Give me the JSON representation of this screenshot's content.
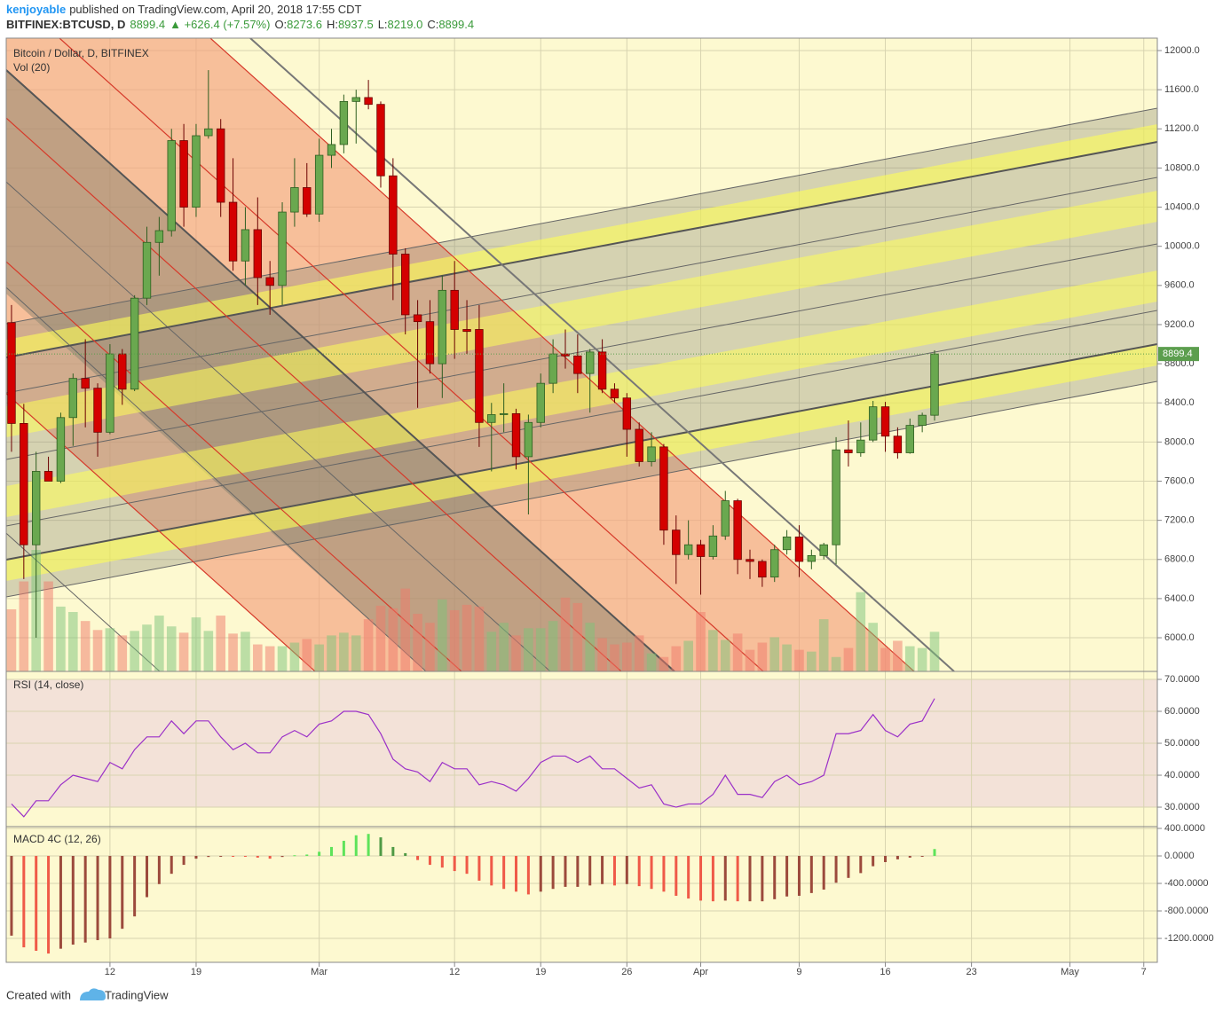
{
  "header": {
    "author": "kenjoyable",
    "published": "published on TradingView.com, April 20, 2018 17:55 CDT",
    "symbol": "BITFINEX:BTCUSD, D",
    "price": "8899.4",
    "change": "▲ +626.4 (+7.57%)",
    "ohlc": [
      {
        "k": "O:",
        "v": "8273.6"
      },
      {
        "k": "H:",
        "v": "8937.5"
      },
      {
        "k": "L:",
        "v": "8219.0"
      },
      {
        "k": "C:",
        "v": "8899.4"
      }
    ]
  },
  "footer": {
    "created": "Created with",
    "brand": "TradingView"
  },
  "chart_data": {
    "type": "candlestick",
    "title": "Bitcoin / Dollar, D, BITFINEX",
    "open": [
      9220,
      8190,
      6950,
      7700,
      7600,
      8250,
      8650,
      8550,
      8100,
      8900,
      8540,
      9470,
      10040,
      10160,
      11080,
      10400,
      11130,
      11200,
      10450,
      9850,
      10170,
      9680,
      9600,
      10350,
      10600,
      10330,
      10930,
      11040,
      11480,
      11520,
      11450,
      10720,
      9920,
      9300,
      9230,
      8800,
      9550,
      9150,
      9150,
      8200,
      8280,
      8290,
      7850,
      8200,
      8600,
      8900,
      8880,
      8700,
      8920,
      8540,
      8450,
      8130,
      7800,
      7950,
      7100,
      6850,
      6950,
      6830,
      7040,
      7400,
      6800,
      6780,
      6620,
      6900,
      7030,
      6780,
      6840,
      6950,
      7920,
      7890,
      8020,
      8360,
      8060,
      7890,
      8170,
      8273.6
    ],
    "high": [
      9400,
      8390,
      7900,
      7850,
      8300,
      8700,
      9050,
      8600,
      9000,
      8950,
      9500,
      10200,
      10300,
      11200,
      11250,
      11250,
      11800,
      11300,
      10900,
      10400,
      10500,
      9850,
      10450,
      10900,
      10850,
      11100,
      11200,
      11550,
      11600,
      11700,
      11480,
      10900,
      9980,
      9450,
      9450,
      9700,
      9850,
      9450,
      9400,
      8400,
      8600,
      8340,
      8280,
      8700,
      9050,
      9150,
      9100,
      8950,
      9050,
      8600,
      8500,
      8200,
      8100,
      7980,
      7250,
      7200,
      7000,
      7150,
      7500,
      7420,
      6900,
      6800,
      6950,
      7100,
      7150,
      6900,
      6970,
      8050,
      8220,
      8200,
      8420,
      8410,
      8150,
      8240,
      8300,
      8937.5
    ],
    "low": [
      7900,
      6600,
      6000,
      7600,
      7580,
      7960,
      8150,
      7850,
      8080,
      8380,
      8520,
      9400,
      9700,
      10100,
      10200,
      10300,
      11100,
      10300,
      9750,
      9600,
      9400,
      9300,
      9400,
      10200,
      10300,
      10250,
      10800,
      10950,
      11050,
      11400,
      10600,
      9450,
      9100,
      8350,
      8700,
      8450,
      8850,
      8900,
      7950,
      7700,
      8100,
      7720,
      7260,
      8150,
      8500,
      8750,
      8500,
      8300,
      8500,
      8400,
      7850,
      7750,
      7750,
      6950,
      6550,
      6800,
      6440,
      6800,
      7000,
      6650,
      6600,
      6520,
      6570,
      6850,
      6620,
      6700,
      6800,
      6750,
      7750,
      7850,
      8000,
      7900,
      7830,
      7880,
      8100,
      8219
    ],
    "close": [
      8190,
      6950,
      7700,
      7600,
      8250,
      8650,
      8550,
      8100,
      8900,
      8540,
      9470,
      10040,
      10160,
      11080,
      10400,
      11130,
      11200,
      10450,
      9850,
      10170,
      9680,
      9600,
      10350,
      10600,
      10330,
      10930,
      11040,
      11480,
      11520,
      11450,
      10720,
      9920,
      9300,
      9230,
      8800,
      9550,
      9150,
      9130,
      8200,
      8280,
      8290,
      7850,
      8200,
      8600,
      8900,
      8880,
      8700,
      8920,
      8540,
      8450,
      8130,
      7800,
      7950,
      7100,
      6850,
      6950,
      6830,
      7040,
      7400,
      6800,
      6780,
      6620,
      6900,
      7030,
      6780,
      6840,
      6950,
      7920,
      7890,
      8020,
      8360,
      8060,
      7890,
      8170,
      8273.6,
      8899.4
    ],
    "colors": {
      "up": "#6aa84f",
      "down": "#d40000",
      "up_edge": "#2e5e20",
      "down_edge": "#6b0000",
      "vol_up": "#7cc47a",
      "vol_down": "#f07a6a",
      "last": "#5c9e4e"
    },
    "xlim": [
      -0.43,
      93.1
    ],
    "xticks": [
      {
        "value": 8,
        "label": "12"
      },
      {
        "value": 15,
        "label": "19"
      },
      {
        "value": 25,
        "label": "Mar"
      },
      {
        "value": 36,
        "label": "12"
      },
      {
        "value": 43,
        "label": "19"
      },
      {
        "value": 50,
        "label": "26"
      },
      {
        "value": 56,
        "label": "Apr"
      },
      {
        "value": 64,
        "label": "9"
      },
      {
        "value": 71,
        "label": "16"
      },
      {
        "value": 78,
        "label": "23"
      },
      {
        "value": 86,
        "label": "May"
      },
      {
        "value": 92,
        "label": "7"
      }
    ],
    "ylim": [
      5656,
      12127
    ],
    "yticks": [
      {
        "value": 6000,
        "label": "6000.0"
      },
      {
        "value": 6400,
        "label": "6400.0"
      },
      {
        "value": 6800,
        "label": "6800.0"
      },
      {
        "value": 7200,
        "label": "7200.0"
      },
      {
        "value": 7600,
        "label": "7600.0"
      },
      {
        "value": 8000,
        "label": "8000.0"
      },
      {
        "value": 8400,
        "label": "8400.0"
      },
      {
        "value": 8800,
        "label": "8800.0"
      },
      {
        "value": 9200,
        "label": "9200.0"
      },
      {
        "value": 9600,
        "label": "9600.0"
      },
      {
        "value": 10000,
        "label": "10000.0"
      },
      {
        "value": 10400,
        "label": "10400.0"
      },
      {
        "value": 10800,
        "label": "10800.0"
      },
      {
        "value": 11200,
        "label": "11200.0"
      },
      {
        "value": 11600,
        "label": "11600.0"
      },
      {
        "value": 12000,
        "label": "12000.0"
      }
    ],
    "grid": true,
    "volume": {
      "title": "Vol (20)",
      "values": [
        69,
        100,
        135,
        100,
        72,
        66,
        56,
        46,
        48,
        40,
        45,
        52,
        62,
        50,
        43,
        60,
        45,
        62,
        42,
        44,
        30,
        28,
        28,
        32,
        36,
        30,
        40,
        43,
        40,
        58,
        73,
        70,
        92,
        64,
        54,
        80,
        68,
        74,
        72,
        44,
        54,
        40,
        48,
        48,
        56,
        82,
        76,
        54,
        37,
        30,
        32,
        40,
        20,
        16,
        28,
        34,
        66,
        46,
        35,
        42,
        24,
        32,
        38,
        30,
        24,
        22,
        58,
        16,
        26,
        88,
        54,
        26,
        34,
        28,
        26,
        44
      ]
    },
    "rsi": {
      "title": "RSI (14, close)",
      "color": "#9b30c8",
      "band": [
        30,
        70
      ],
      "band_color": "#f3e2d8",
      "values": [
        31,
        27,
        32,
        32,
        37,
        40,
        39,
        38,
        44,
        42,
        48,
        52,
        52,
        57,
        53,
        57,
        57,
        52,
        48,
        50,
        47,
        47,
        52,
        54,
        52,
        56,
        57,
        60,
        60,
        59,
        53,
        45,
        42,
        41,
        38,
        44,
        42,
        42,
        37,
        38,
        37,
        35,
        39,
        44,
        46,
        46,
        44,
        46,
        42,
        42,
        39,
        36,
        37,
        31,
        30,
        31,
        31,
        34,
        40,
        34,
        34,
        33,
        38,
        40,
        37,
        38,
        40,
        53,
        53,
        54,
        59,
        54,
        52,
        56,
        57,
        64
      ],
      "ylim": [
        23.9,
        72.5
      ],
      "yticks": [
        {
          "value": 30,
          "label": "30.0000"
        },
        {
          "value": 40,
          "label": "40.0000"
        },
        {
          "value": 50,
          "label": "50.0000"
        },
        {
          "value": 60,
          "label": "60.0000"
        },
        {
          "value": 70,
          "label": "70.0000"
        }
      ]
    },
    "macd": {
      "title": "MACD 4C (12, 26)",
      "colors": {
        "pos_up": "#5ee35a",
        "pos_down": "#4f9a45",
        "neg_down": "#ef5a48",
        "neg_up": "#9c4a3c"
      },
      "values": [
        -1160,
        -1330,
        -1380,
        -1420,
        -1350,
        -1290,
        -1260,
        -1225,
        -1200,
        -1060,
        -880,
        -600,
        -410,
        -260,
        -130,
        -40,
        -15,
        -5,
        -8,
        -10,
        -25,
        -40,
        -15,
        10,
        20,
        60,
        130,
        220,
        300,
        320,
        270,
        130,
        40,
        -60,
        -130,
        -170,
        -220,
        -260,
        -360,
        -430,
        -480,
        -520,
        -560,
        -520,
        -480,
        -450,
        -450,
        -430,
        -410,
        -430,
        -410,
        -440,
        -480,
        -520,
        -580,
        -620,
        -650,
        -660,
        -650,
        -660,
        -660,
        -660,
        -630,
        -590,
        -580,
        -540,
        -490,
        -390,
        -320,
        -250,
        -150,
        -90,
        -50,
        -25,
        -10,
        100
      ],
      "ylim": [
        -1548,
        426
      ],
      "yticks": [
        {
          "value": 400,
          "label": "400.0000"
        },
        {
          "value": 0,
          "label": "0.0000"
        },
        {
          "value": -400,
          "label": "-400.0000"
        },
        {
          "value": -800,
          "label": "-800.0000"
        },
        {
          "value": -1200,
          "label": "-1200.0000"
        }
      ]
    }
  }
}
